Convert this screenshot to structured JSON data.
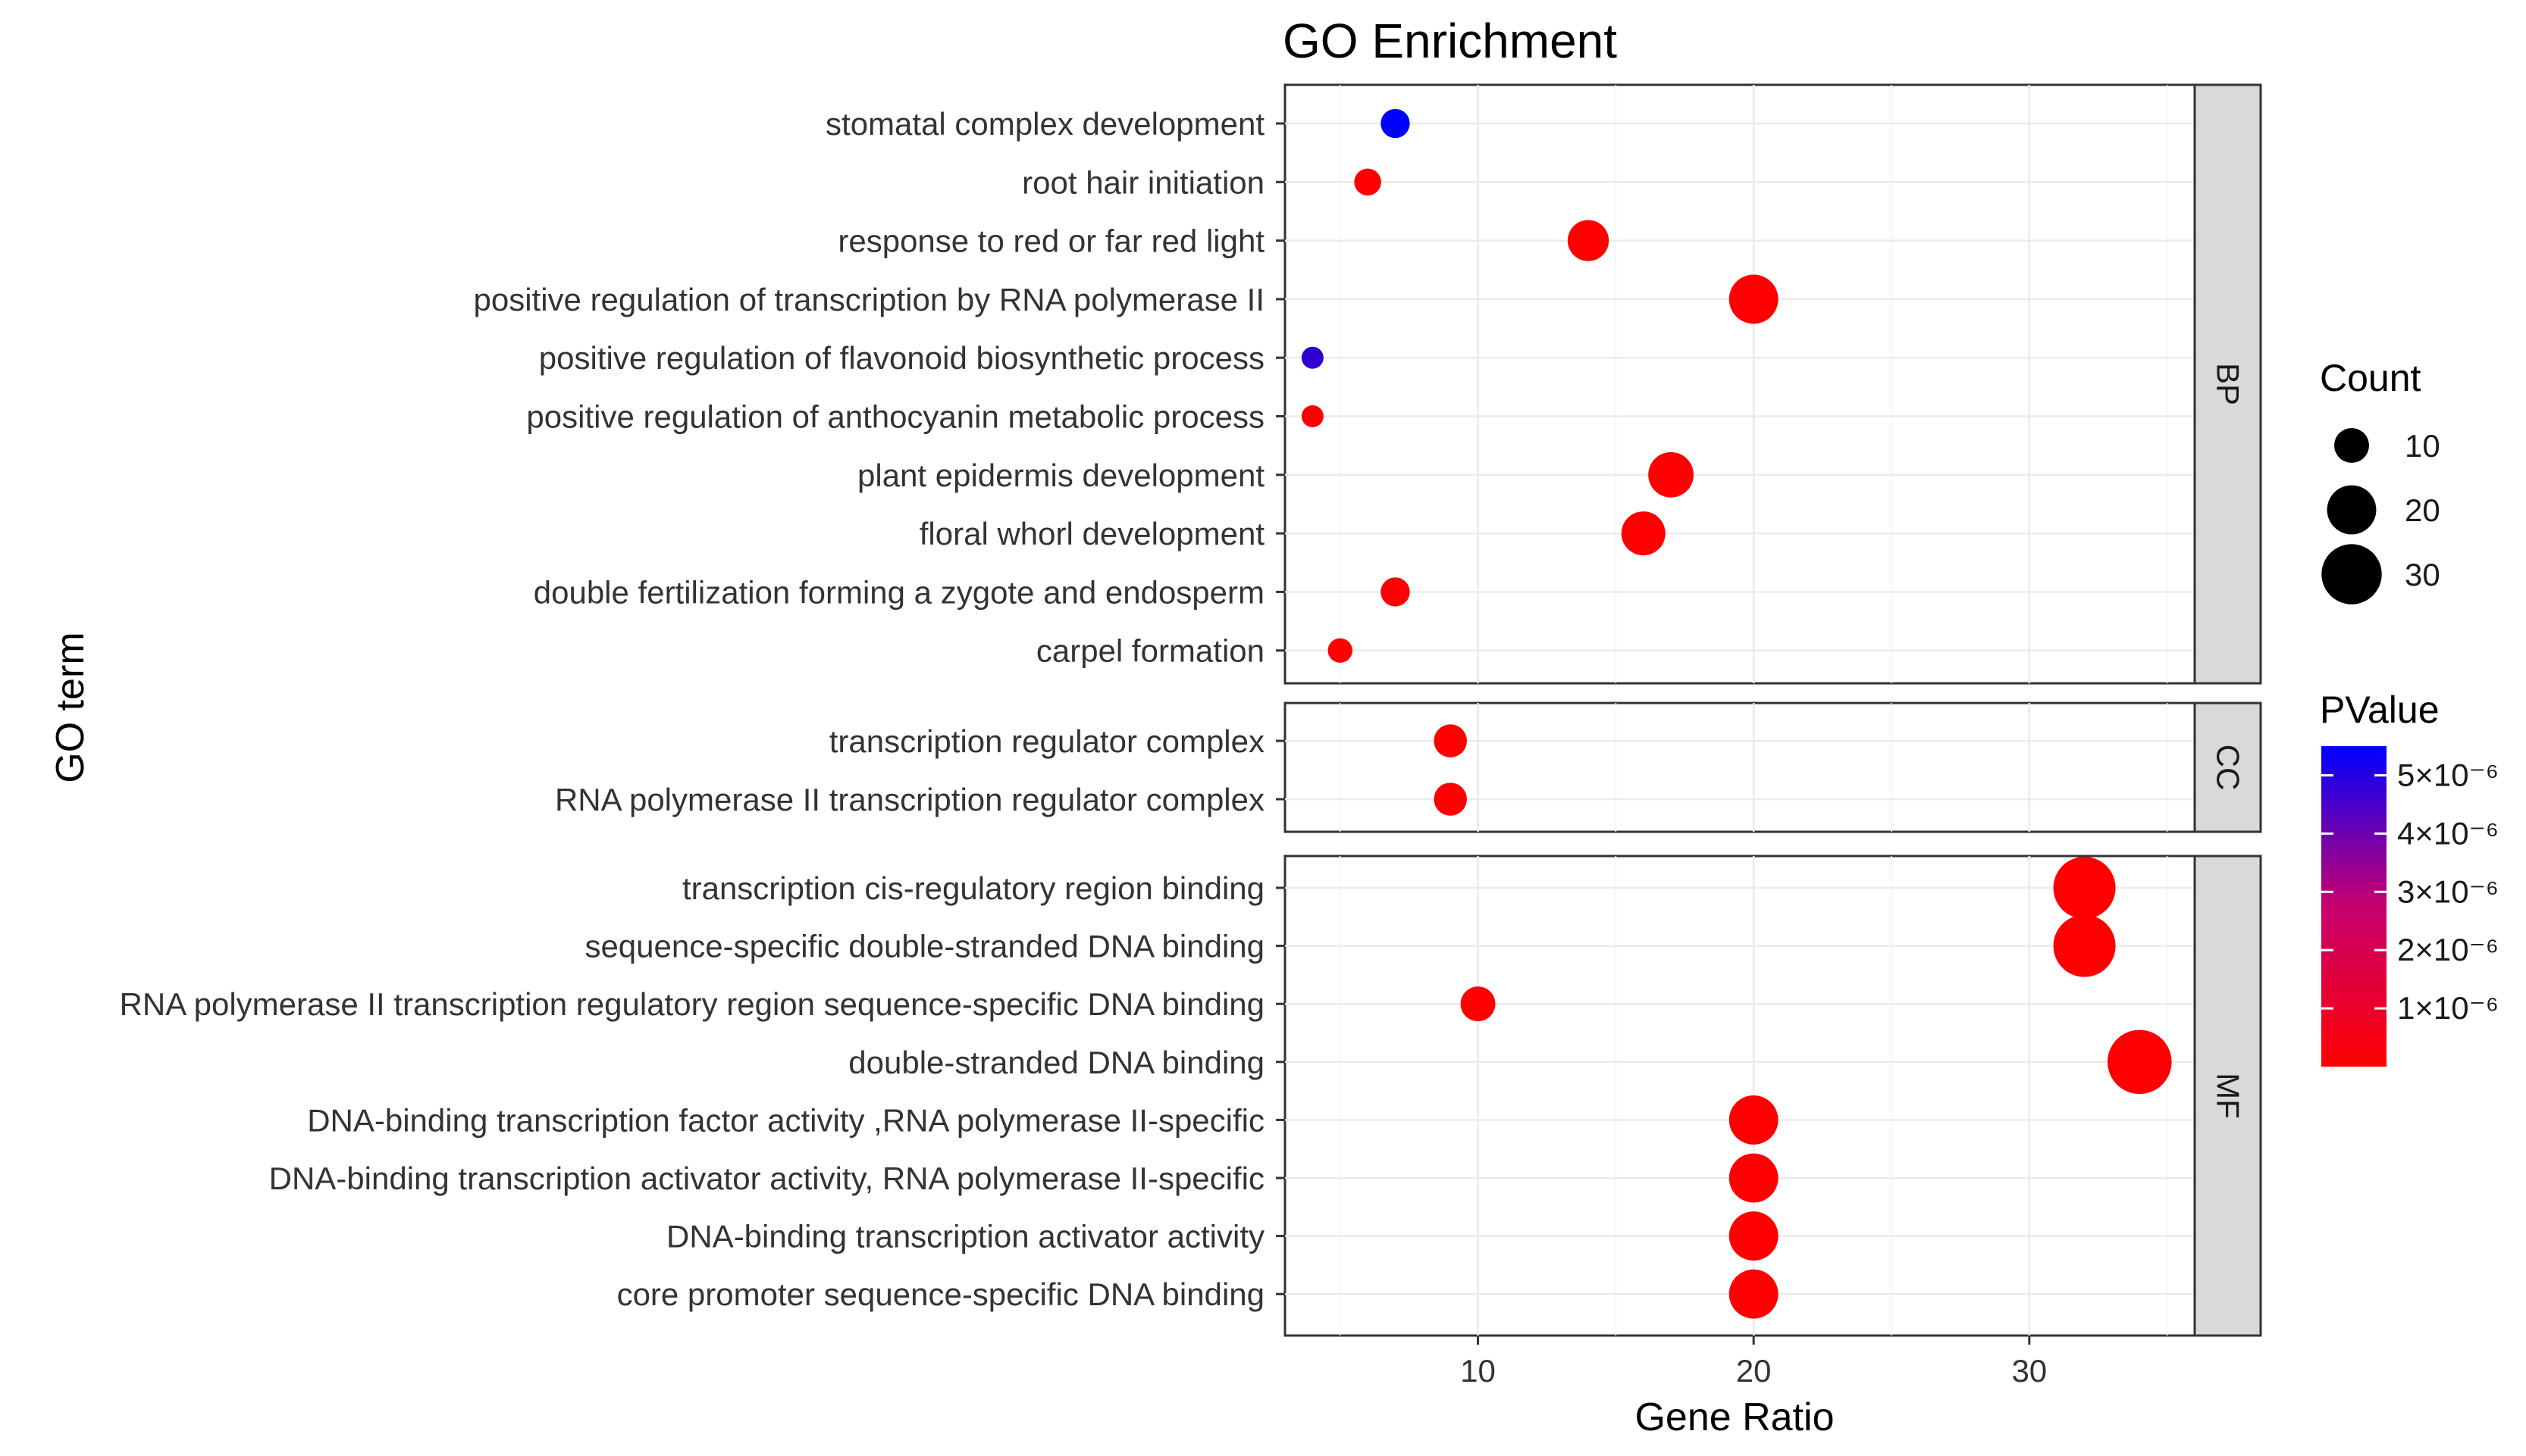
{
  "chart_data": {
    "type": "scatter",
    "title": "GO Enrichment",
    "xlabel": "Gene Ratio",
    "ylabel": "GO term",
    "xlim": [
      3,
      36
    ],
    "x_ticks": [
      10,
      20,
      30
    ],
    "facets": [
      {
        "name": "BP",
        "terms": [
          {
            "term": "stomatal complex development",
            "gene_ratio": 7,
            "count": 7,
            "pvalue": 5.5e-06
          },
          {
            "term": "root hair initiation",
            "gene_ratio": 6,
            "count": 6,
            "pvalue": 1e-08
          },
          {
            "term": "response to red or far red light",
            "gene_ratio": 14,
            "count": 14,
            "pvalue": 1e-08
          },
          {
            "term": "positive regulation of transcription by RNA polymerase II",
            "gene_ratio": 20,
            "count": 20,
            "pvalue": 1e-08
          },
          {
            "term": "positive regulation of flavonoid biosynthetic process",
            "gene_ratio": 4,
            "count": 4,
            "pvalue": 4.5e-06
          },
          {
            "term": "positive regulation of anthocyanin metabolic process",
            "gene_ratio": 4,
            "count": 4,
            "pvalue": 1e-08
          },
          {
            "term": "plant epidermis development",
            "gene_ratio": 17,
            "count": 17,
            "pvalue": 1e-08
          },
          {
            "term": "floral whorl development",
            "gene_ratio": 16,
            "count": 16,
            "pvalue": 1e-08
          },
          {
            "term": "double fertilization forming a zygote and endosperm",
            "gene_ratio": 7,
            "count": 7,
            "pvalue": 1e-08
          },
          {
            "term": "carpel formation",
            "gene_ratio": 5,
            "count": 5,
            "pvalue": 1e-08
          }
        ]
      },
      {
        "name": "CC",
        "terms": [
          {
            "term": "transcription regulator complex",
            "gene_ratio": 9,
            "count": 9,
            "pvalue": 1e-08
          },
          {
            "term": "RNA polymerase II transcription regulator complex",
            "gene_ratio": 9,
            "count": 9,
            "pvalue": 1e-08
          }
        ]
      },
      {
        "name": "MF",
        "terms": [
          {
            "term": "transcription cis-regulatory region binding",
            "gene_ratio": 32,
            "count": 32,
            "pvalue": 1e-08
          },
          {
            "term": "sequence-specific double-stranded DNA binding",
            "gene_ratio": 32,
            "count": 32,
            "pvalue": 1e-08
          },
          {
            "term": "RNA polymerase II transcription regulatory region sequence-specific DNA binding",
            "gene_ratio": 10,
            "count": 10,
            "pvalue": 1e-08
          },
          {
            "term": "double-stranded DNA binding",
            "gene_ratio": 34,
            "count": 34,
            "pvalue": 1e-08
          },
          {
            "term": "DNA-binding transcription factor activity ,RNA polymerase II-specific",
            "gene_ratio": 20,
            "count": 20,
            "pvalue": 1e-08
          },
          {
            "term": "DNA-binding transcription activator activity, RNA polymerase II-specific",
            "gene_ratio": 20,
            "count": 20,
            "pvalue": 1e-08
          },
          {
            "term": "DNA-binding transcription activator activity",
            "gene_ratio": 20,
            "count": 20,
            "pvalue": 1e-08
          },
          {
            "term": "core promoter sequence-specific DNA binding",
            "gene_ratio": 20,
            "count": 20,
            "pvalue": 1e-08
          }
        ]
      }
    ],
    "legend_count": {
      "title": "Count",
      "values": [
        10,
        20,
        30
      ],
      "labels": [
        "10",
        "20",
        "30"
      ]
    },
    "legend_pvalue": {
      "title": "PValue",
      "range": [
        0,
        5.5e-06
      ],
      "breaks": [
        5e-06,
        4e-06,
        3e-06,
        2e-06,
        1e-06
      ],
      "labels": [
        "5×10⁻⁶",
        "4×10⁻⁶",
        "3×10⁻⁶",
        "2×10⁻⁶",
        "1×10⁻⁶"
      ],
      "low_color": "#ff0000",
      "high_color": "#0000ff"
    }
  }
}
